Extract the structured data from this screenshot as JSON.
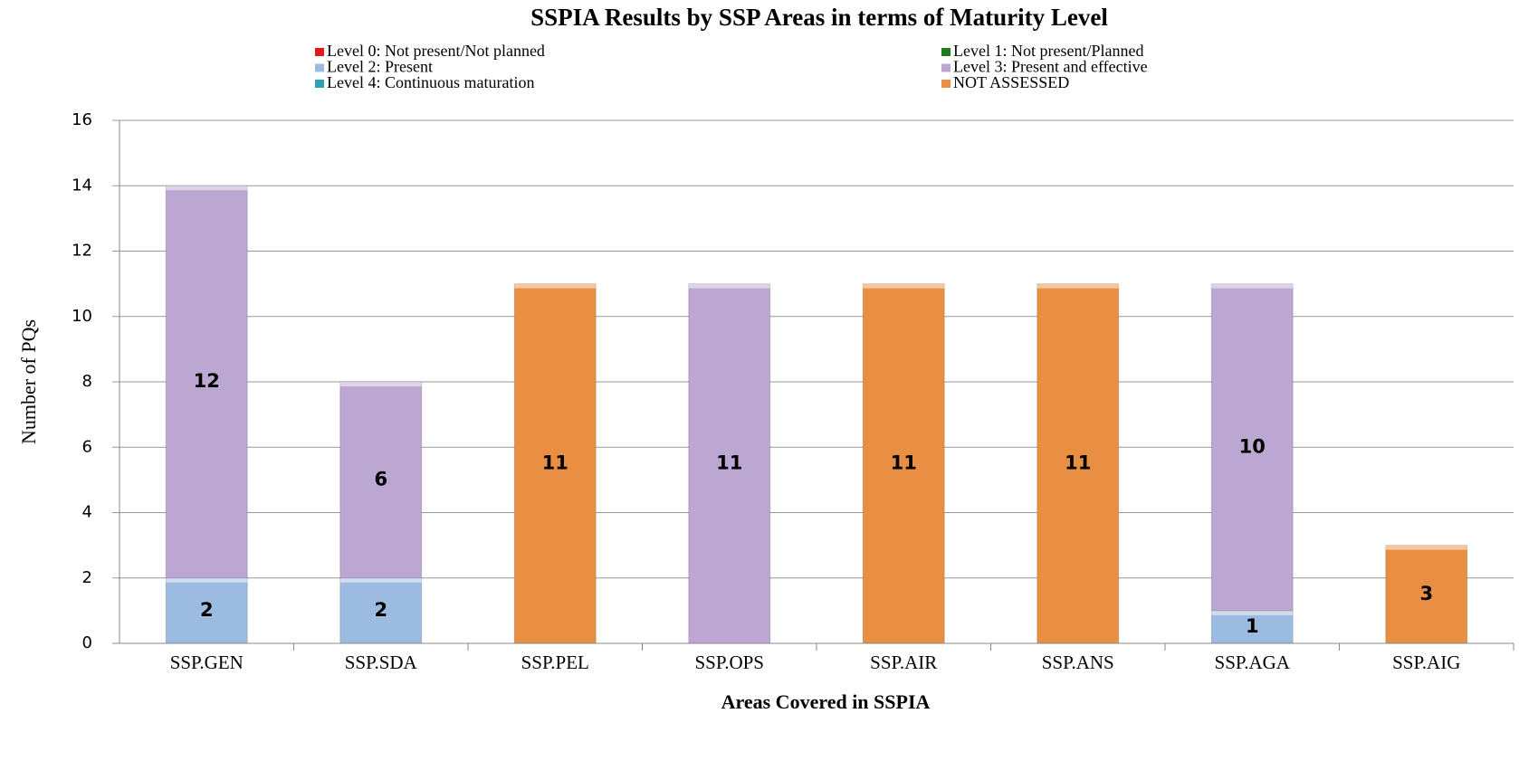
{
  "chart_data": {
    "type": "stacked_bar",
    "title": "SSPIA Results by SSP Areas in terms of Maturity Level",
    "x_label": "Areas Covered in SSPIA",
    "y_label": "Number of PQs",
    "categories": [
      "SSP.GEN",
      "SSP.SDA",
      "SSP.PEL",
      "SSP.OPS",
      "SSP.AIR",
      "SSP.ANS",
      "SSP.AGA",
      "SSP.AIG"
    ],
    "series": [
      {
        "name": "Level 0: Not present/Not planned",
        "color": "#e31a1c",
        "values": [
          0,
          0,
          0,
          0,
          0,
          0,
          0,
          0
        ]
      },
      {
        "name": "Level 1: Not present/Planned",
        "color": "#1e7b1e",
        "values": [
          0,
          0,
          0,
          0,
          0,
          0,
          0,
          0
        ]
      },
      {
        "name": "Level 2: Present",
        "color": "#9cbbe0",
        "values": [
          2,
          2,
          0,
          0,
          0,
          0,
          1,
          0
        ]
      },
      {
        "name": "Level 3: Present and effective",
        "color": "#bca7d3",
        "values": [
          12,
          6,
          0,
          11,
          0,
          0,
          10,
          0
        ]
      },
      {
        "name": "Level 4: Continuous maturation",
        "color": "#2f9fb4",
        "values": [
          0,
          0,
          0,
          0,
          0,
          0,
          0,
          0
        ]
      },
      {
        "name": "NOT ASSESSED",
        "color": "#e98f43",
        "values": [
          0,
          0,
          11,
          0,
          11,
          11,
          0,
          3
        ]
      }
    ],
    "ylim": [
      0,
      16
    ],
    "yticks": [
      0,
      2,
      4,
      6,
      8,
      10,
      12,
      14,
      16
    ],
    "grid": true,
    "legend": "top"
  }
}
